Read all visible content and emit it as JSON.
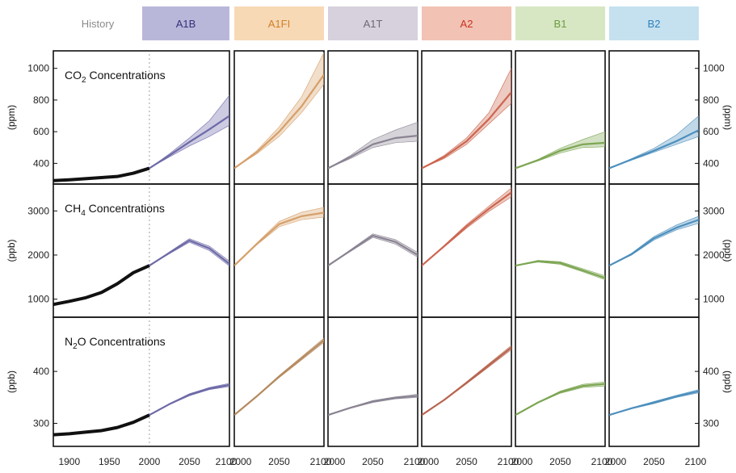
{
  "headers": [
    {
      "label": "History",
      "color": "#8a8a8a",
      "bg": "#ffffff"
    },
    {
      "label": "A1B",
      "color": "#34307a",
      "bg": "#b9b7d9"
    },
    {
      "label": "A1FI",
      "color": "#d0802c",
      "bg": "#f7d9b5"
    },
    {
      "label": "A1T",
      "color": "#6e6878",
      "bg": "#d6d1dd"
    },
    {
      "label": "A2",
      "color": "#c8341e",
      "bg": "#f2c2b4"
    },
    {
      "label": "B1",
      "color": "#6d9a3e",
      "bg": "#d7e7c4"
    },
    {
      "label": "B2",
      "color": "#2f80b8",
      "bg": "#c5e1f0"
    }
  ],
  "x_tick_labels": [
    "1900",
    "1950",
    "2000",
    "2050",
    "2100"
  ],
  "chart_data": [
    {
      "type": "line",
      "id": "co2",
      "title_parts": [
        "CO",
        "2",
        " Concentrations"
      ],
      "ylabel": "(ppm)",
      "yticks": [
        400,
        600,
        800,
        1000
      ],
      "ylim": [
        300,
        1080
      ],
      "history": {
        "x": [
          1880,
          1900,
          1920,
          1940,
          1960,
          1980,
          2000
        ],
        "y": [
          291,
          296,
          303,
          310,
          317,
          338,
          369
        ]
      },
      "scenarios": [
        {
          "name": "A1B",
          "color": "#6e6aa8",
          "x": [
            2000,
            2025,
            2050,
            2075,
            2100
          ],
          "y": [
            369,
            450,
            535,
            615,
            700
          ],
          "low": [
            369,
            440,
            510,
            570,
            640
          ],
          "high": [
            369,
            460,
            560,
            670,
            830
          ]
        },
        {
          "name": "A1FI",
          "color": "#d6a06a",
          "x": [
            2000,
            2025,
            2050,
            2075,
            2100
          ],
          "y": [
            369,
            470,
            600,
            760,
            960
          ],
          "low": [
            369,
            460,
            570,
            720,
            900
          ],
          "high": [
            369,
            480,
            630,
            820,
            1100
          ]
        },
        {
          "name": "A1T",
          "color": "#8a8392",
          "x": [
            2000,
            2025,
            2050,
            2075,
            2100
          ],
          "y": [
            369,
            440,
            520,
            560,
            575
          ],
          "low": [
            369,
            430,
            500,
            530,
            540
          ],
          "high": [
            369,
            450,
            550,
            610,
            660
          ]
        },
        {
          "name": "A2",
          "color": "#cc6650",
          "x": [
            2000,
            2025,
            2050,
            2075,
            2100
          ],
          "y": [
            369,
            440,
            540,
            680,
            850
          ],
          "low": [
            369,
            430,
            520,
            650,
            780
          ],
          "high": [
            369,
            450,
            560,
            720,
            1000
          ]
        },
        {
          "name": "B1",
          "color": "#7da653",
          "x": [
            2000,
            2025,
            2050,
            2075,
            2100
          ],
          "y": [
            369,
            420,
            480,
            520,
            530
          ],
          "low": [
            369,
            415,
            465,
            500,
            505
          ],
          "high": [
            369,
            425,
            495,
            550,
            600
          ]
        },
        {
          "name": "B2",
          "color": "#4d8fbd",
          "x": [
            2000,
            2025,
            2050,
            2075,
            2100
          ],
          "y": [
            369,
            425,
            480,
            540,
            610
          ],
          "low": [
            369,
            420,
            470,
            520,
            570
          ],
          "high": [
            369,
            430,
            495,
            580,
            700
          ]
        }
      ]
    },
    {
      "type": "line",
      "id": "ch4",
      "title_parts": [
        "CH",
        "4",
        " Concentrations"
      ],
      "ylabel": "(ppb)",
      "yticks": [
        1000,
        2000,
        3000
      ],
      "ylim": [
        700,
        3500
      ],
      "history": {
        "x": [
          1880,
          1900,
          1920,
          1940,
          1960,
          1980,
          2000
        ],
        "y": [
          880,
          950,
          1030,
          1150,
          1350,
          1600,
          1760
        ]
      },
      "scenarios": [
        {
          "name": "A1B",
          "color": "#6e6aa8",
          "x": [
            2000,
            2025,
            2050,
            2075,
            2100
          ],
          "y": [
            1760,
            2050,
            2330,
            2150,
            1800
          ],
          "low": [
            1760,
            2030,
            2290,
            2100,
            1750
          ],
          "high": [
            1760,
            2070,
            2370,
            2200,
            1860
          ]
        },
        {
          "name": "A1FI",
          "color": "#d6a06a",
          "x": [
            2000,
            2025,
            2050,
            2075,
            2100
          ],
          "y": [
            1760,
            2250,
            2700,
            2880,
            2960
          ],
          "low": [
            1760,
            2230,
            2640,
            2800,
            2860
          ],
          "high": [
            1760,
            2270,
            2760,
            2970,
            3080
          ]
        },
        {
          "name": "A1T",
          "color": "#8a8392",
          "x": [
            2000,
            2025,
            2050,
            2075,
            2100
          ],
          "y": [
            1760,
            2100,
            2440,
            2300,
            2000
          ],
          "low": [
            1760,
            2080,
            2400,
            2250,
            1950
          ],
          "high": [
            1760,
            2120,
            2480,
            2350,
            2060
          ]
        },
        {
          "name": "A2",
          "color": "#cc6650",
          "x": [
            2000,
            2025,
            2050,
            2075,
            2100
          ],
          "y": [
            1760,
            2200,
            2650,
            3050,
            3420
          ],
          "low": [
            1760,
            2180,
            2610,
            2990,
            3320
          ],
          "high": [
            1760,
            2220,
            2690,
            3110,
            3520
          ]
        },
        {
          "name": "B1",
          "color": "#7da653",
          "x": [
            2000,
            2025,
            2050,
            2075,
            2100
          ],
          "y": [
            1760,
            1860,
            1820,
            1650,
            1480
          ],
          "low": [
            1760,
            1840,
            1790,
            1620,
            1440
          ],
          "high": [
            1760,
            1880,
            1850,
            1690,
            1530
          ]
        },
        {
          "name": "B2",
          "color": "#4d8fbd",
          "x": [
            2000,
            2025,
            2050,
            2075,
            2100
          ],
          "y": [
            1760,
            2020,
            2380,
            2620,
            2800
          ],
          "low": [
            1760,
            2000,
            2340,
            2570,
            2720
          ],
          "high": [
            1760,
            2040,
            2420,
            2680,
            2880
          ]
        }
      ]
    },
    {
      "type": "line",
      "id": "n2o",
      "title_parts": [
        "N",
        "2",
        "O Concentrations"
      ],
      "ylabel": "(ppb)",
      "yticks": [
        300,
        400
      ],
      "ylim": [
        265,
        495
      ],
      "history": {
        "x": [
          1880,
          1900,
          1920,
          1940,
          1960,
          1980,
          2000
        ],
        "y": [
          278,
          280,
          283,
          286,
          292,
          302,
          316
        ]
      },
      "scenarios": [
        {
          "name": "A1B",
          "color": "#6e6aa8",
          "x": [
            2000,
            2025,
            2050,
            2075,
            2100
          ],
          "y": [
            316,
            337,
            355,
            367,
            374
          ],
          "low": [
            316,
            336,
            353,
            365,
            371
          ],
          "high": [
            316,
            338,
            357,
            369,
            377
          ]
        },
        {
          "name": "A1FI",
          "color": "#b58a5e",
          "x": [
            2000,
            2025,
            2050,
            2075,
            2100
          ],
          "y": [
            316,
            352,
            390,
            425,
            460
          ],
          "low": [
            316,
            351,
            388,
            422,
            456
          ],
          "high": [
            316,
            353,
            392,
            428,
            464
          ]
        },
        {
          "name": "A1T",
          "color": "#8a8392",
          "x": [
            2000,
            2025,
            2050,
            2075,
            2100
          ],
          "y": [
            316,
            330,
            342,
            349,
            353
          ],
          "low": [
            316,
            329,
            340,
            347,
            350
          ],
          "high": [
            316,
            331,
            344,
            351,
            356
          ]
        },
        {
          "name": "A2",
          "color": "#b7644e",
          "x": [
            2000,
            2025,
            2050,
            2075,
            2100
          ],
          "y": [
            316,
            345,
            378,
            412,
            446
          ],
          "low": [
            316,
            344,
            376,
            409,
            442
          ],
          "high": [
            316,
            346,
            380,
            415,
            450
          ]
        },
        {
          "name": "B1",
          "color": "#7da653",
          "x": [
            2000,
            2025,
            2050,
            2075,
            2100
          ],
          "y": [
            316,
            340,
            360,
            372,
            376
          ],
          "low": [
            316,
            339,
            358,
            369,
            372
          ],
          "high": [
            316,
            341,
            362,
            375,
            380
          ]
        },
        {
          "name": "B2",
          "color": "#4d8fbd",
          "x": [
            2000,
            2025,
            2050,
            2075,
            2100
          ],
          "y": [
            316,
            329,
            340,
            352,
            362
          ],
          "low": [
            316,
            328,
            338,
            350,
            359
          ],
          "high": [
            316,
            330,
            342,
            354,
            365
          ]
        }
      ]
    }
  ]
}
